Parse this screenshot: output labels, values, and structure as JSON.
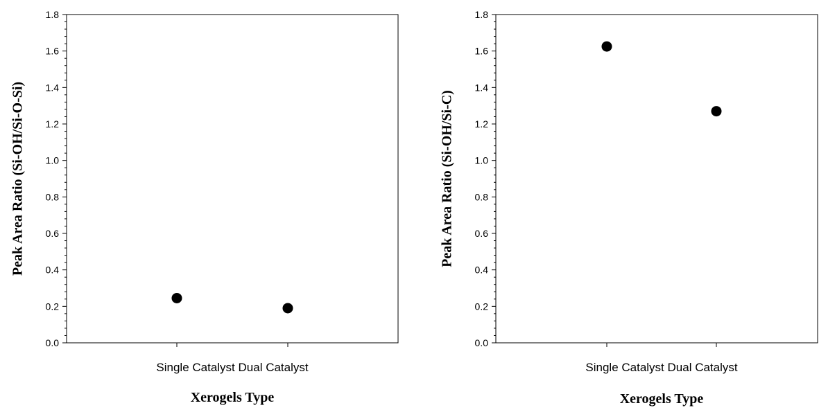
{
  "chart_data": [
    {
      "type": "scatter",
      "categories": [
        "Single Catalyst",
        "Dual Catalyst"
      ],
      "series": [
        {
          "values": [
            0.245,
            0.19
          ]
        }
      ],
      "category_label": "Single Catalyst Dual Catalyst",
      "xlabel": "Xerogels Type",
      "ylabel": "Peak Area Ratio (Si-OH/Si-O-Si)",
      "ylim": [
        0,
        1.8
      ],
      "yticks": [
        "0.0",
        "0.2",
        "0.4",
        "0.6",
        "0.8",
        "1.0",
        "1.2",
        "1.4",
        "1.6",
        "1.8"
      ],
      "grid": false,
      "marker_color": "#000000"
    },
    {
      "type": "scatter",
      "categories": [
        "Single Catalyst",
        "Dual Catalyst"
      ],
      "series": [
        {
          "values": [
            1.625,
            1.27
          ]
        }
      ],
      "category_label": "Single Catalyst Dual Catalyst",
      "xlabel": "Xerogels Type",
      "ylabel": "Peak Area Ratio (Si-OH/Si-C)",
      "ylim": [
        0,
        1.8
      ],
      "yticks": [
        "0.0",
        "0.2",
        "0.4",
        "0.6",
        "0.8",
        "1.0",
        "1.2",
        "1.4",
        "1.6",
        "1.8"
      ],
      "grid": false,
      "marker_color": "#000000"
    }
  ]
}
